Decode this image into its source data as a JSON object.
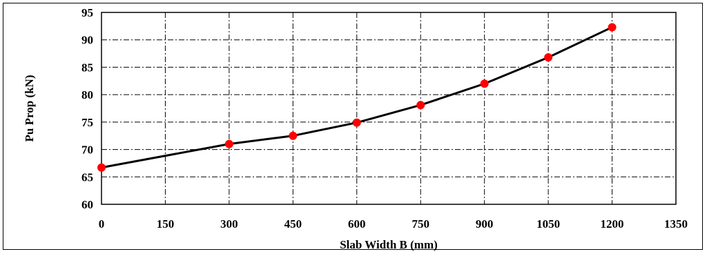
{
  "chart_data": {
    "type": "line",
    "title": "",
    "xlabel": "Slab Width B  (mm)",
    "ylabel": "Pu  Prop (kN)",
    "xlim": [
      0,
      1350
    ],
    "ylim": [
      60,
      95
    ],
    "xticks": [
      0,
      150,
      300,
      450,
      600,
      750,
      900,
      1050,
      1200,
      1350
    ],
    "yticks": [
      60,
      65,
      70,
      75,
      80,
      85,
      90,
      95
    ],
    "grid": true,
    "legend": "none",
    "series": [
      {
        "x": [
          0,
          300,
          450,
          600,
          750,
          900,
          1050,
          1200
        ],
        "y": [
          66.7,
          71.0,
          72.5,
          74.9,
          78.1,
          82.0,
          86.8,
          92.3
        ]
      }
    ],
    "colors": {
      "line": "#000000",
      "marker": "#ff0000",
      "grid": "#000000"
    }
  }
}
